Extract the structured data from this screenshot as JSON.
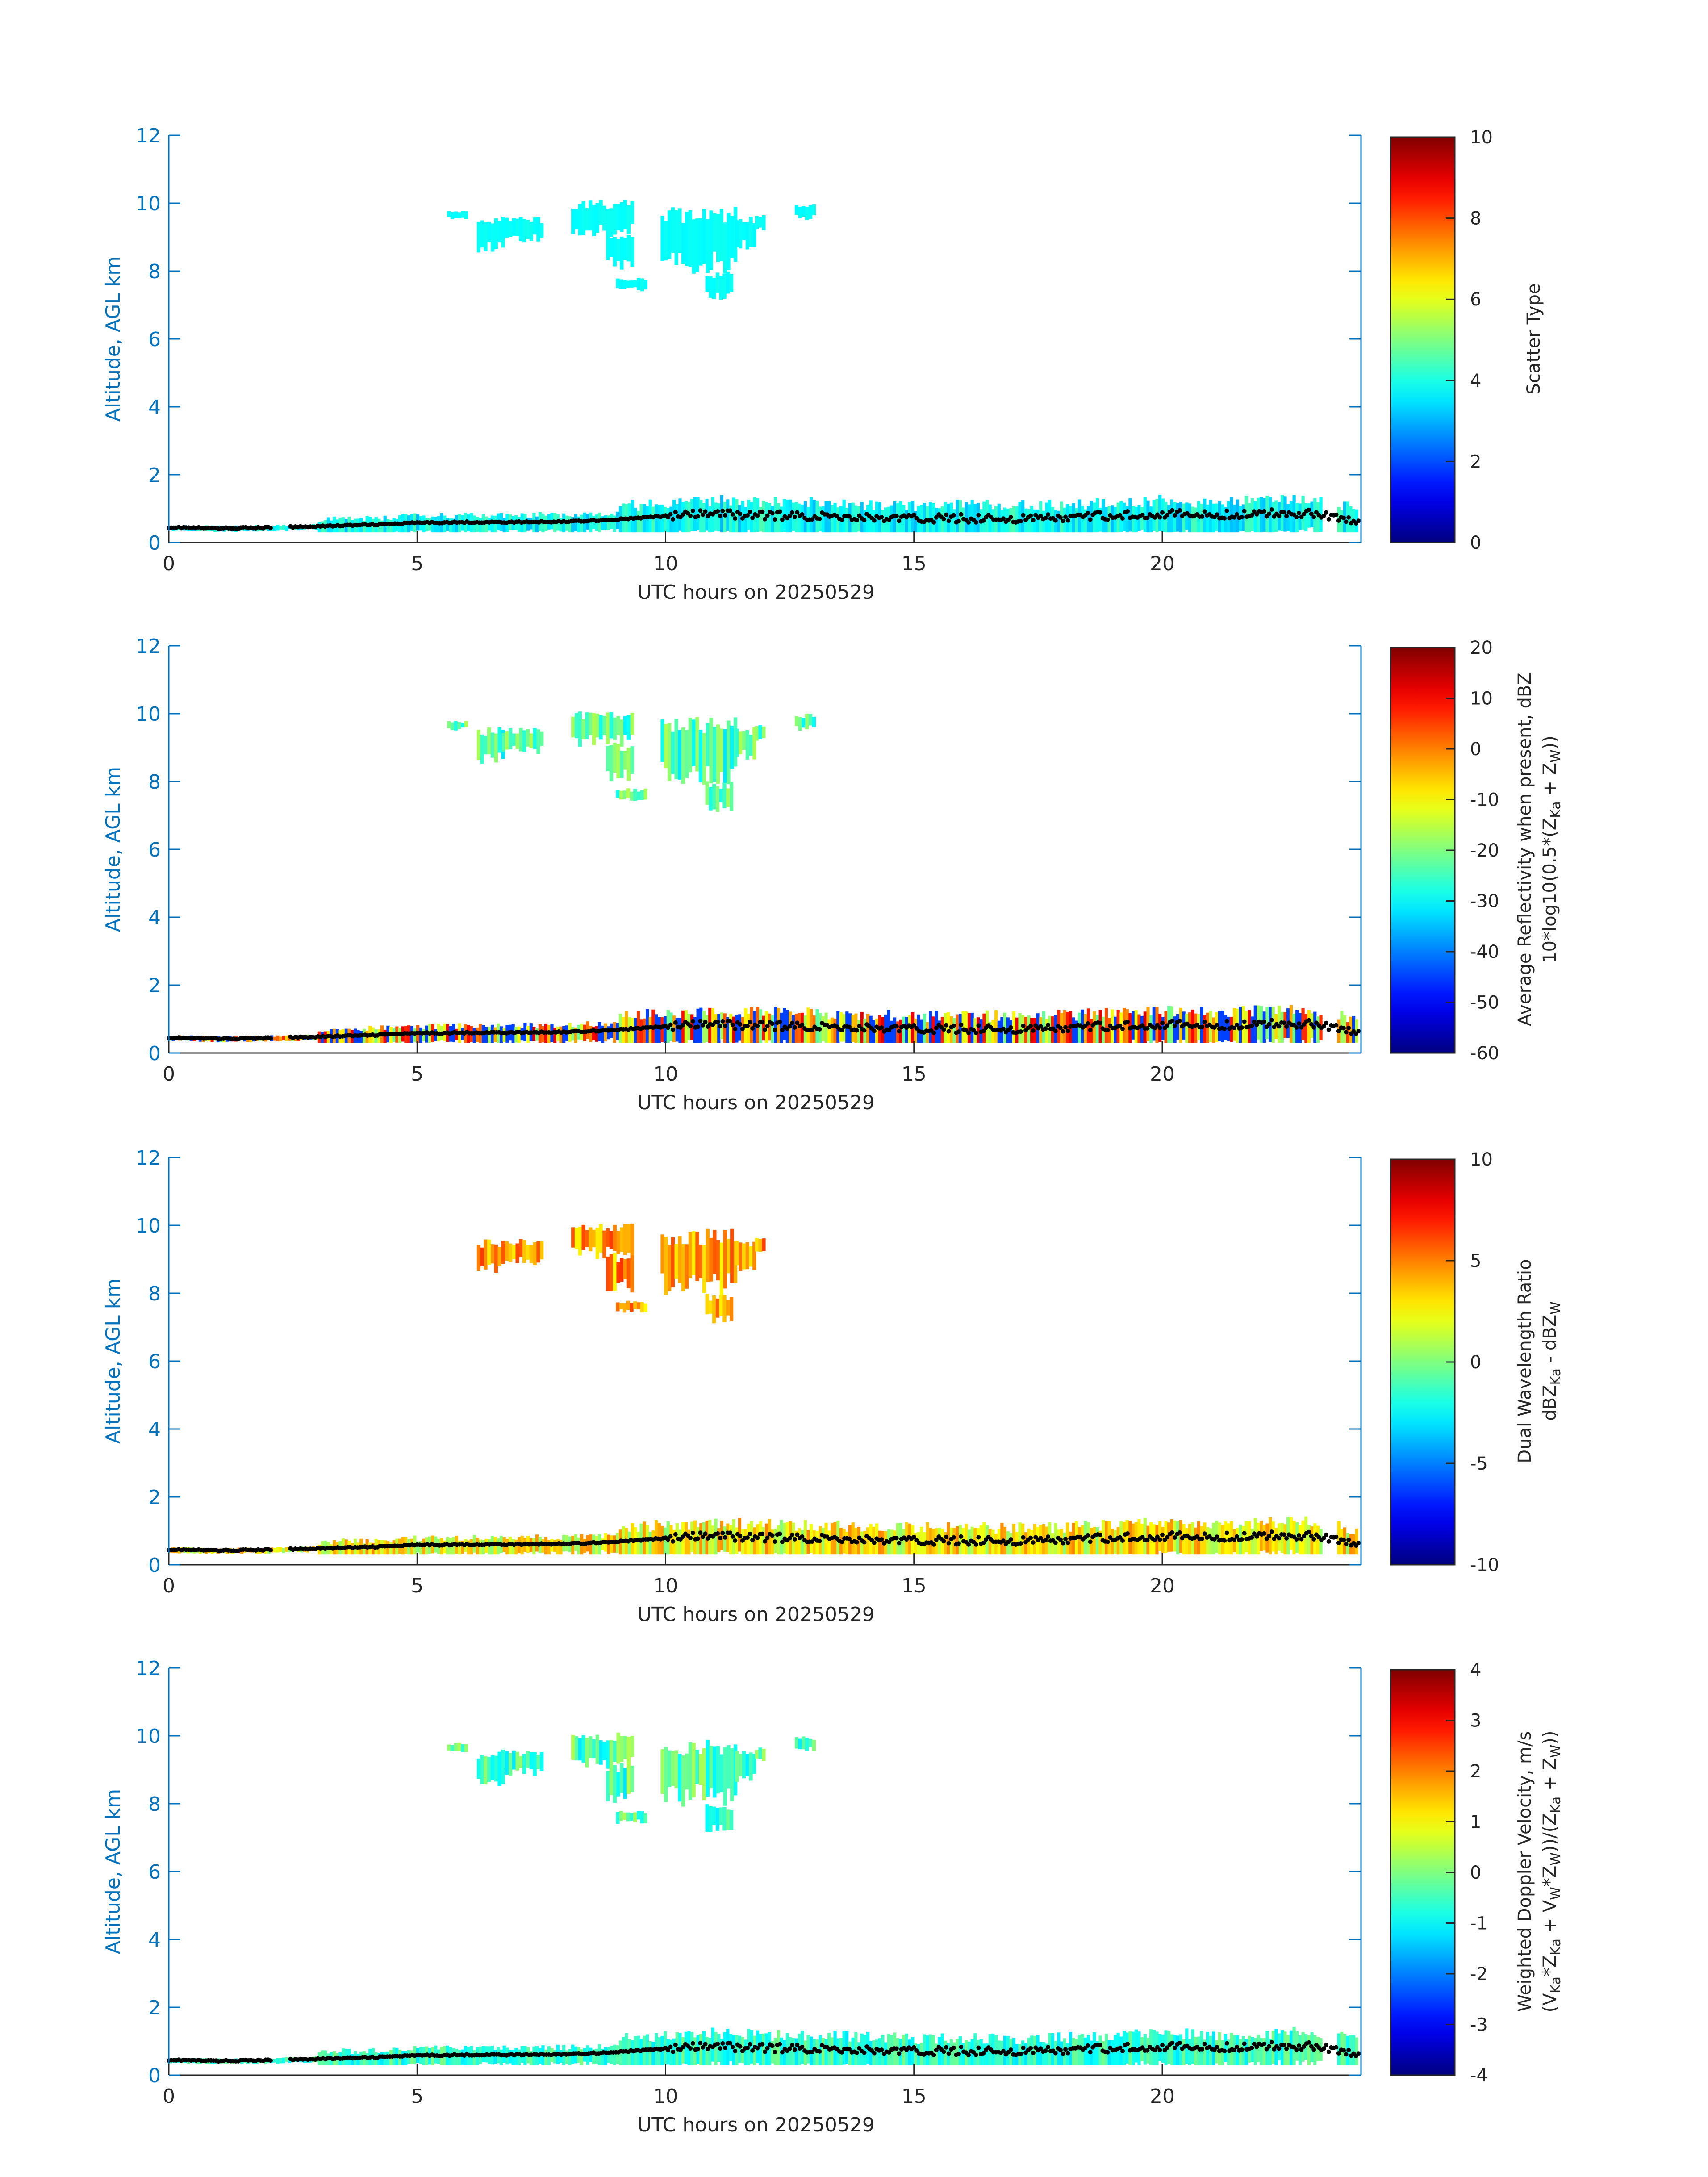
{
  "figure": {
    "date_label": "UTC hours on 20250529",
    "axis_color": "#0072bd"
  },
  "chart_data": [
    {
      "type": "heatmap",
      "title": "",
      "xlabel": "UTC hours on 20250529",
      "ylabel": "Altitude, AGL km",
      "xlim": [
        0,
        24
      ],
      "ylim": [
        0,
        12
      ],
      "xticks": [
        0,
        5,
        10,
        15,
        20
      ],
      "yticks": [
        0,
        2,
        4,
        6,
        8,
        10,
        12
      ],
      "colorbar": {
        "label_lines": [
          "Scatter Type"
        ],
        "clim": [
          0,
          10
        ],
        "ticks": [
          0,
          2,
          4,
          6,
          8,
          10
        ],
        "colormap": "jet"
      },
      "fields": {
        "upper_cloud": 3.8,
        "lower_layer": 3.8
      }
    },
    {
      "type": "heatmap",
      "title": "",
      "xlabel": "UTC hours on 20250529",
      "ylabel": "Altitude, AGL km",
      "xlim": [
        0,
        24
      ],
      "ylim": [
        0,
        12
      ],
      "xticks": [
        0,
        5,
        10,
        15,
        20
      ],
      "yticks": [
        0,
        2,
        4,
        6,
        8,
        10,
        12
      ],
      "colorbar": {
        "label_lines": [
          "Average Reflectivity when present, dBZ",
          "10*log10(0.5*(Z",
          "Ka",
          " + Z",
          "W",
          "))"
        ],
        "clim": [
          -60,
          20
        ],
        "ticks": [
          -60,
          -50,
          -40,
          -30,
          -20,
          -10,
          0,
          10,
          20
        ],
        "colormap": "jet"
      },
      "fields": {
        "upper_cloud": -24,
        "lower_layer": -5
      }
    },
    {
      "type": "heatmap",
      "title": "",
      "xlabel": "UTC hours on 20250529",
      "ylabel": "Altitude, AGL km",
      "xlim": [
        0,
        24
      ],
      "ylim": [
        0,
        12
      ],
      "xticks": [
        0,
        5,
        10,
        15,
        20
      ],
      "yticks": [
        0,
        2,
        4,
        6,
        8,
        10,
        12
      ],
      "colorbar": {
        "label_lines": [
          "Dual Wavelength Ratio",
          "dBZ",
          "Ka",
          " - dBZ",
          "W"
        ],
        "clim": [
          -10,
          10
        ],
        "ticks": [
          -10,
          -5,
          0,
          5,
          10
        ],
        "colormap": "jet"
      },
      "fields": {
        "upper_cloud": 4.5,
        "lower_layer": 2.5
      }
    },
    {
      "type": "heatmap",
      "title": "",
      "xlabel": "UTC hours on 20250529",
      "ylabel": "Altitude, AGL km",
      "xlim": [
        0,
        24
      ],
      "ylim": [
        0,
        12
      ],
      "xticks": [
        0,
        5,
        10,
        15,
        20
      ],
      "yticks": [
        0,
        2,
        4,
        6,
        8,
        10,
        12
      ],
      "colorbar": {
        "label_lines": [
          "Weighted Doppler Velocity, m/s",
          "(V",
          "Ka",
          "*Z",
          "Ka",
          " + V",
          "W",
          "*Z",
          "W",
          "))/(Z",
          "Ka",
          " + Z",
          "W",
          "))"
        ],
        "clim": [
          -4,
          4
        ],
        "ticks": [
          -4,
          -3,
          -2,
          -1,
          0,
          1,
          2,
          3,
          4
        ],
        "colormap": "jet"
      },
      "fields": {
        "upper_cloud": -0.4,
        "lower_layer": -0.6
      }
    }
  ],
  "cloud_top_line": {
    "x": [
      0,
      1,
      2,
      3,
      4,
      5,
      6,
      7,
      8,
      9,
      10,
      11,
      12,
      13,
      14,
      15,
      16,
      17,
      18,
      19,
      20,
      21,
      22,
      23,
      24
    ],
    "y": [
      0.45,
      0.42,
      0.44,
      0.48,
      0.52,
      0.58,
      0.6,
      0.6,
      0.62,
      0.68,
      0.78,
      0.85,
      0.8,
      0.78,
      0.74,
      0.7,
      0.72,
      0.7,
      0.72,
      0.8,
      0.85,
      0.8,
      0.85,
      0.88,
      0.6
    ]
  },
  "upper_cloud_patches": [
    {
      "x0": 5.6,
      "x1": 6.0,
      "y0": 9.5,
      "y1": 9.8
    },
    {
      "x0": 6.2,
      "x1": 6.7,
      "y0": 8.5,
      "y1": 9.6
    },
    {
      "x0": 6.7,
      "x1": 7.5,
      "y0": 8.8,
      "y1": 9.6
    },
    {
      "x0": 8.1,
      "x1": 9.3,
      "y0": 9.0,
      "y1": 10.1
    },
    {
      "x0": 8.8,
      "x1": 9.3,
      "y0": 8.0,
      "y1": 9.2
    },
    {
      "x0": 9.0,
      "x1": 9.6,
      "y0": 7.4,
      "y1": 7.8
    },
    {
      "x0": 9.9,
      "x1": 11.4,
      "y0": 7.9,
      "y1": 9.9
    },
    {
      "x0": 10.8,
      "x1": 11.3,
      "y0": 7.1,
      "y1": 8.0
    },
    {
      "x0": 11.4,
      "x1": 11.8,
      "y0": 8.6,
      "y1": 9.6
    },
    {
      "x0": 11.8,
      "x1": 12.0,
      "y0": 9.2,
      "y1": 9.7
    },
    {
      "x0": 12.6,
      "x1": 13.0,
      "y0": 9.5,
      "y1": 10.0
    }
  ]
}
